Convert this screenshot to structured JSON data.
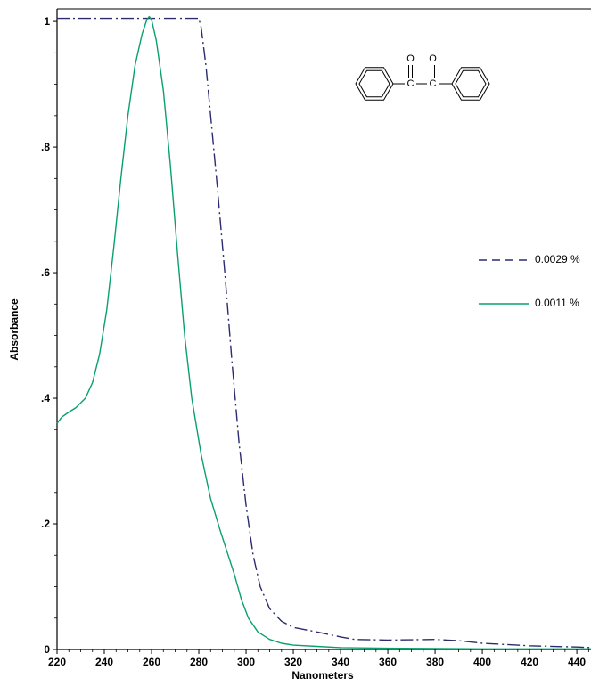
{
  "colors": {
    "series_0029": "#2b2b6e",
    "series_0011": "#0aa06e",
    "axis": "#000000"
  },
  "molecule": {
    "atom_o": "O",
    "atom_c": "C"
  },
  "chart_data": {
    "type": "line",
    "xlabel": "Nanometers",
    "ylabel": "Absorbance",
    "xlim": [
      220,
      446
    ],
    "ylim": [
      0,
      1.02
    ],
    "x_ticks": [
      220,
      240,
      260,
      280,
      300,
      320,
      340,
      360,
      380,
      400,
      420,
      440
    ],
    "x_tick_labels": [
      "220",
      "240",
      "260",
      "280",
      "300",
      "320",
      "340",
      "360",
      "380",
      "400",
      "420",
      "440"
    ],
    "y_ticks": [
      0,
      0.2,
      0.4,
      0.6,
      0.8,
      1.0
    ],
    "y_tick_labels": [
      "0",
      ".2",
      ".4",
      ".6",
      ".8",
      "1"
    ],
    "grid": false,
    "legend_position": "right",
    "series": [
      {
        "name": "0.0029 %",
        "style": "dash-dot",
        "points": [
          [
            220,
            1.005
          ],
          [
            240,
            1.005
          ],
          [
            260,
            1.005
          ],
          [
            280,
            1.005
          ],
          [
            281,
            0.99
          ],
          [
            283,
            0.93
          ],
          [
            285,
            0.85
          ],
          [
            288,
            0.73
          ],
          [
            291,
            0.6
          ],
          [
            294,
            0.46
          ],
          [
            297,
            0.33
          ],
          [
            300,
            0.23
          ],
          [
            303,
            0.15
          ],
          [
            306,
            0.1
          ],
          [
            310,
            0.065
          ],
          [
            315,
            0.045
          ],
          [
            320,
            0.035
          ],
          [
            330,
            0.028
          ],
          [
            340,
            0.02
          ],
          [
            346,
            0.016
          ],
          [
            360,
            0.015
          ],
          [
            380,
            0.016
          ],
          [
            390,
            0.014
          ],
          [
            400,
            0.01
          ],
          [
            420,
            0.006
          ],
          [
            440,
            0.004
          ],
          [
            446,
            0.003
          ]
        ]
      },
      {
        "name": "0.0011 %",
        "style": "solid",
        "points": [
          [
            220,
            0.36
          ],
          [
            222,
            0.37
          ],
          [
            225,
            0.378
          ],
          [
            228,
            0.385
          ],
          [
            232,
            0.4
          ],
          [
            235,
            0.425
          ],
          [
            238,
            0.47
          ],
          [
            241,
            0.54
          ],
          [
            244,
            0.64
          ],
          [
            247,
            0.75
          ],
          [
            250,
            0.85
          ],
          [
            253,
            0.93
          ],
          [
            256,
            0.98
          ],
          [
            258,
            1.003
          ],
          [
            259,
            1.008
          ],
          [
            260,
            1.003
          ],
          [
            262,
            0.97
          ],
          [
            265,
            0.89
          ],
          [
            268,
            0.77
          ],
          [
            271,
            0.63
          ],
          [
            274,
            0.5
          ],
          [
            277,
            0.4
          ],
          [
            281,
            0.31
          ],
          [
            285,
            0.24
          ],
          [
            289,
            0.19
          ],
          [
            292,
            0.155
          ],
          [
            295,
            0.12
          ],
          [
            298,
            0.08
          ],
          [
            301,
            0.05
          ],
          [
            305,
            0.028
          ],
          [
            310,
            0.016
          ],
          [
            315,
            0.01
          ],
          [
            320,
            0.007
          ],
          [
            330,
            0.005
          ],
          [
            340,
            0.003
          ],
          [
            360,
            0.002
          ],
          [
            400,
            0.001
          ],
          [
            446,
            0.001
          ]
        ]
      }
    ]
  }
}
